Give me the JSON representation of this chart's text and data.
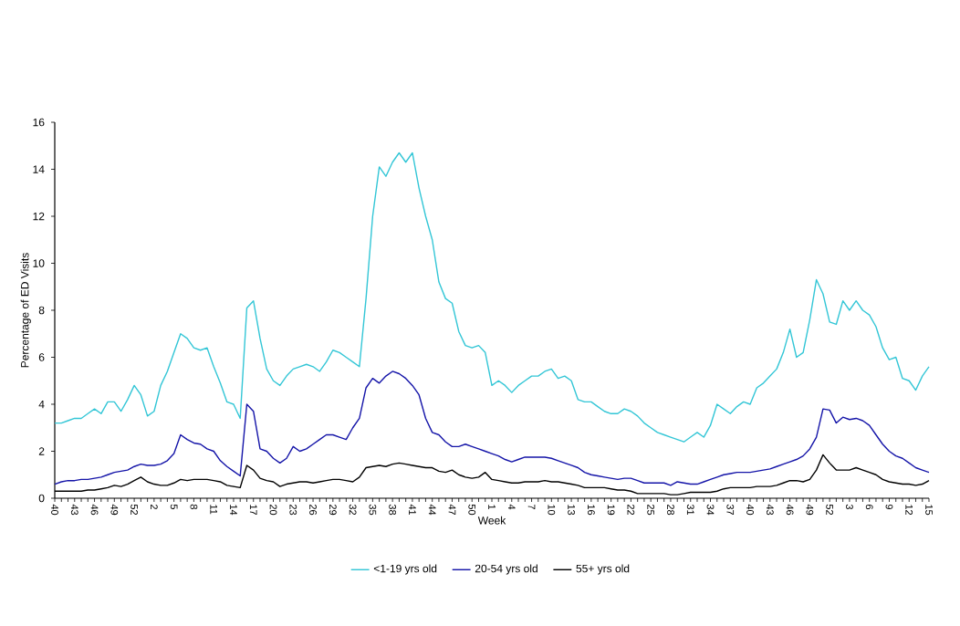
{
  "chart_data": {
    "type": "line",
    "xlabel": "Week",
    "ylabel": "Percentage of ED Visits",
    "categories": [
      "40",
      null,
      null,
      "43",
      null,
      null,
      "46",
      null,
      null,
      "49",
      null,
      null,
      "52",
      null,
      null,
      "2",
      null,
      null,
      "5",
      null,
      null,
      "8",
      null,
      null,
      "11",
      null,
      null,
      "14",
      null,
      null,
      "17",
      null,
      null,
      "20",
      null,
      null,
      "23",
      null,
      null,
      "26",
      null,
      null,
      "29",
      null,
      null,
      "32",
      null,
      null,
      "35",
      null,
      null,
      "38",
      null,
      null,
      "41",
      null,
      null,
      "44",
      null,
      null,
      "47",
      null,
      null,
      "50",
      null,
      null,
      "1",
      null,
      null,
      "4",
      null,
      null,
      "7",
      null,
      null,
      "10",
      null,
      null,
      "13",
      null,
      null,
      "16",
      null,
      null,
      "19",
      null,
      null,
      "22",
      null,
      null,
      "25",
      null,
      null,
      "28",
      null,
      null,
      "31",
      null,
      null,
      "34",
      null,
      null,
      "37",
      null,
      null,
      "40",
      null,
      null,
      "43",
      null,
      null,
      "46",
      null,
      null,
      "49",
      null,
      null,
      "52",
      null,
      null,
      "3",
      null,
      null,
      "6",
      null,
      null,
      "9",
      null,
      null,
      "12",
      null,
      null,
      "15"
    ],
    "series": [
      {
        "name": "<1-19 yrs old",
        "color": "#33c6d6",
        "values": [
          3.2,
          3.2,
          3.3,
          3.4,
          3.4,
          3.6,
          3.8,
          3.6,
          4.1,
          4.1,
          3.7,
          4.2,
          4.8,
          4.4,
          3.5,
          3.7,
          4.8,
          5.4,
          6.2,
          7.0,
          6.8,
          6.4,
          6.3,
          6.4,
          5.6,
          4.9,
          4.1,
          4.0,
          3.4,
          8.1,
          8.4,
          6.8,
          5.5,
          5.0,
          4.8,
          5.2,
          5.5,
          5.6,
          5.7,
          5.6,
          5.4,
          5.8,
          6.3,
          6.2,
          6.0,
          5.8,
          5.6,
          8.5,
          12.0,
          14.1,
          13.7,
          14.3,
          14.7,
          14.3,
          14.7,
          13.2,
          12.0,
          11.0,
          9.2,
          8.5,
          8.3,
          7.1,
          6.5,
          6.4,
          6.5,
          6.2,
          4.8,
          5.0,
          4.8,
          4.5,
          4.8,
          5.0,
          5.2,
          5.2,
          5.4,
          5.5,
          5.1,
          5.2,
          5.0,
          4.2,
          4.1,
          4.1,
          3.9,
          3.7,
          3.6,
          3.6,
          3.8,
          3.7,
          3.5,
          3.2,
          3.0,
          2.8,
          2.7,
          2.6,
          2.5,
          2.4,
          2.6,
          2.8,
          2.6,
          3.1,
          4.0,
          3.8,
          3.6,
          3.9,
          4.1,
          4.0,
          4.7,
          4.9,
          5.2,
          5.5,
          6.2,
          7.2,
          6.0,
          6.2,
          7.6,
          9.3,
          8.7,
          7.5,
          7.4,
          8.4,
          8.0,
          8.4,
          8.0,
          7.8,
          7.3,
          6.4,
          5.9,
          6.0,
          5.1,
          5.0,
          4.6,
          5.2,
          5.6
        ]
      },
      {
        "name": "20-54 yrs old",
        "color": "#1414a8",
        "values": [
          0.6,
          0.7,
          0.75,
          0.75,
          0.8,
          0.8,
          0.85,
          0.9,
          1.0,
          1.1,
          1.15,
          1.2,
          1.35,
          1.45,
          1.4,
          1.4,
          1.45,
          1.6,
          1.9,
          2.7,
          2.5,
          2.35,
          2.3,
          2.1,
          2.0,
          1.6,
          1.35,
          1.15,
          0.95,
          4.0,
          3.7,
          2.1,
          2.0,
          1.7,
          1.5,
          1.7,
          2.2,
          2.0,
          2.1,
          2.3,
          2.5,
          2.7,
          2.7,
          2.6,
          2.5,
          3.0,
          3.4,
          4.7,
          5.1,
          4.9,
          5.2,
          5.4,
          5.3,
          5.1,
          4.8,
          4.4,
          3.4,
          2.8,
          2.7,
          2.4,
          2.2,
          2.2,
          2.3,
          2.2,
          2.1,
          2.0,
          1.9,
          1.8,
          1.65,
          1.55,
          1.65,
          1.75,
          1.75,
          1.75,
          1.75,
          1.7,
          1.6,
          1.5,
          1.4,
          1.3,
          1.1,
          1.0,
          0.95,
          0.9,
          0.85,
          0.8,
          0.85,
          0.85,
          0.75,
          0.65,
          0.65,
          0.65,
          0.65,
          0.55,
          0.7,
          0.65,
          0.6,
          0.6,
          0.7,
          0.8,
          0.9,
          1.0,
          1.05,
          1.1,
          1.1,
          1.1,
          1.15,
          1.2,
          1.25,
          1.35,
          1.45,
          1.55,
          1.65,
          1.8,
          2.1,
          2.6,
          3.8,
          3.75,
          3.2,
          3.45,
          3.35,
          3.4,
          3.3,
          3.1,
          2.7,
          2.3,
          2.0,
          1.8,
          1.7,
          1.5,
          1.3,
          1.2,
          1.1
        ]
      },
      {
        "name": "55+ yrs old",
        "color": "#000000",
        "values": [
          0.3,
          0.3,
          0.3,
          0.3,
          0.3,
          0.35,
          0.35,
          0.4,
          0.45,
          0.55,
          0.5,
          0.6,
          0.75,
          0.9,
          0.7,
          0.6,
          0.55,
          0.55,
          0.65,
          0.8,
          0.75,
          0.8,
          0.8,
          0.8,
          0.75,
          0.7,
          0.55,
          0.5,
          0.45,
          1.4,
          1.2,
          0.85,
          0.75,
          0.7,
          0.5,
          0.6,
          0.65,
          0.7,
          0.7,
          0.65,
          0.7,
          0.75,
          0.8,
          0.8,
          0.75,
          0.7,
          0.9,
          1.3,
          1.35,
          1.4,
          1.35,
          1.45,
          1.5,
          1.45,
          1.4,
          1.35,
          1.3,
          1.3,
          1.15,
          1.1,
          1.2,
          1.0,
          0.9,
          0.85,
          0.9,
          1.1,
          0.8,
          0.75,
          0.7,
          0.65,
          0.65,
          0.7,
          0.7,
          0.7,
          0.75,
          0.7,
          0.7,
          0.65,
          0.6,
          0.55,
          0.45,
          0.45,
          0.45,
          0.45,
          0.4,
          0.35,
          0.35,
          0.3,
          0.2,
          0.2,
          0.2,
          0.2,
          0.2,
          0.15,
          0.15,
          0.2,
          0.25,
          0.25,
          0.25,
          0.25,
          0.3,
          0.4,
          0.45,
          0.45,
          0.45,
          0.45,
          0.5,
          0.5,
          0.5,
          0.55,
          0.65,
          0.75,
          0.75,
          0.7,
          0.8,
          1.2,
          1.85,
          1.5,
          1.2,
          1.2,
          1.2,
          1.3,
          1.2,
          1.1,
          1.0,
          0.8,
          0.7,
          0.65,
          0.6,
          0.6,
          0.55,
          0.6,
          0.75
        ]
      }
    ],
    "ylim": [
      0,
      16
    ],
    "yticks": [
      0,
      2,
      4,
      6,
      8,
      10,
      12,
      14,
      16
    ],
    "legend": "bottom",
    "marker": "none",
    "line_style": "solid"
  }
}
